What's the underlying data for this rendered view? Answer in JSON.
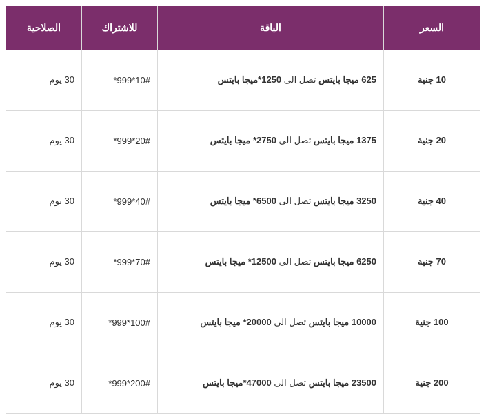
{
  "table": {
    "header_bg": "#7b2e6b",
    "header_color": "#ffffff",
    "border_color": "#d9d9d9",
    "columns": [
      "السعر",
      "الباقة",
      "للاشتراك",
      "الصلاحية"
    ],
    "rows": [
      {
        "price": "10 جنية",
        "pkg_bold": "625 ميجا بايتس",
        "pkg_mid": " تصل الى ",
        "pkg_bold2": "1250*ميجا بايتس",
        "subscribe": "*999*10#",
        "validity": "30 يوم"
      },
      {
        "price": "20 جنية",
        "pkg_bold": "1375 ميجا بايتس",
        "pkg_mid": " تصل الى ",
        "pkg_bold2": "2750* ميجا بايتس",
        "subscribe": "*999*20#",
        "validity": "30 يوم"
      },
      {
        "price": "40 جنية",
        "pkg_bold": "3250 ميجا بايتس",
        "pkg_mid": " تصل الى ",
        "pkg_bold2": "6500* ميجا بايتس",
        "subscribe": "*999*40#",
        "validity": "30 يوم"
      },
      {
        "price": "70 جنية",
        "pkg_bold": "6250 ميجا بايتس",
        "pkg_mid": " تصل الى ",
        "pkg_bold2": "12500* ميجا بايتس",
        "subscribe": "*999*70#",
        "validity": "30 يوم"
      },
      {
        "price": "100 جنية",
        "pkg_bold": "10000 ميجا بايتس",
        "pkg_mid": " تصل الى ",
        "pkg_bold2": "20000* ميجا بايتس",
        "subscribe": "*999*100#",
        "validity": "30 يوم"
      },
      {
        "price": "200 جنية",
        "pkg_bold": "23500 ميجا بايتس",
        "pkg_mid": " تصل الى ",
        "pkg_bold2": "47000*ميجا بايتس",
        "subscribe": "*999*200#",
        "validity": "30 يوم"
      }
    ]
  }
}
